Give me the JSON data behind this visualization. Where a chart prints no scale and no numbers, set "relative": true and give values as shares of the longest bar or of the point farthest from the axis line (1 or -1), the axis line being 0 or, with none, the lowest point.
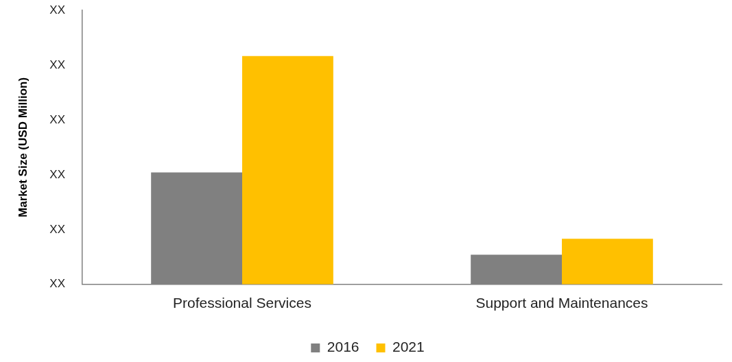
{
  "chart_data": {
    "type": "bar",
    "relative": true,
    "ylabel": "Market Size (USD Million)",
    "categories": [
      "Professional Services",
      "Support and Maintenances"
    ],
    "series": [
      {
        "name": "2016",
        "color": "#808080",
        "values": [
          0.49,
          0.13
        ]
      },
      {
        "name": "2021",
        "color": "#ffc000",
        "values": [
          1,
          0.2
        ]
      }
    ],
    "annotations": [
      "XX",
      "XX",
      "XX",
      "XX",
      "XX",
      "XX"
    ],
    "grid": false,
    "legend": "bottom"
  }
}
